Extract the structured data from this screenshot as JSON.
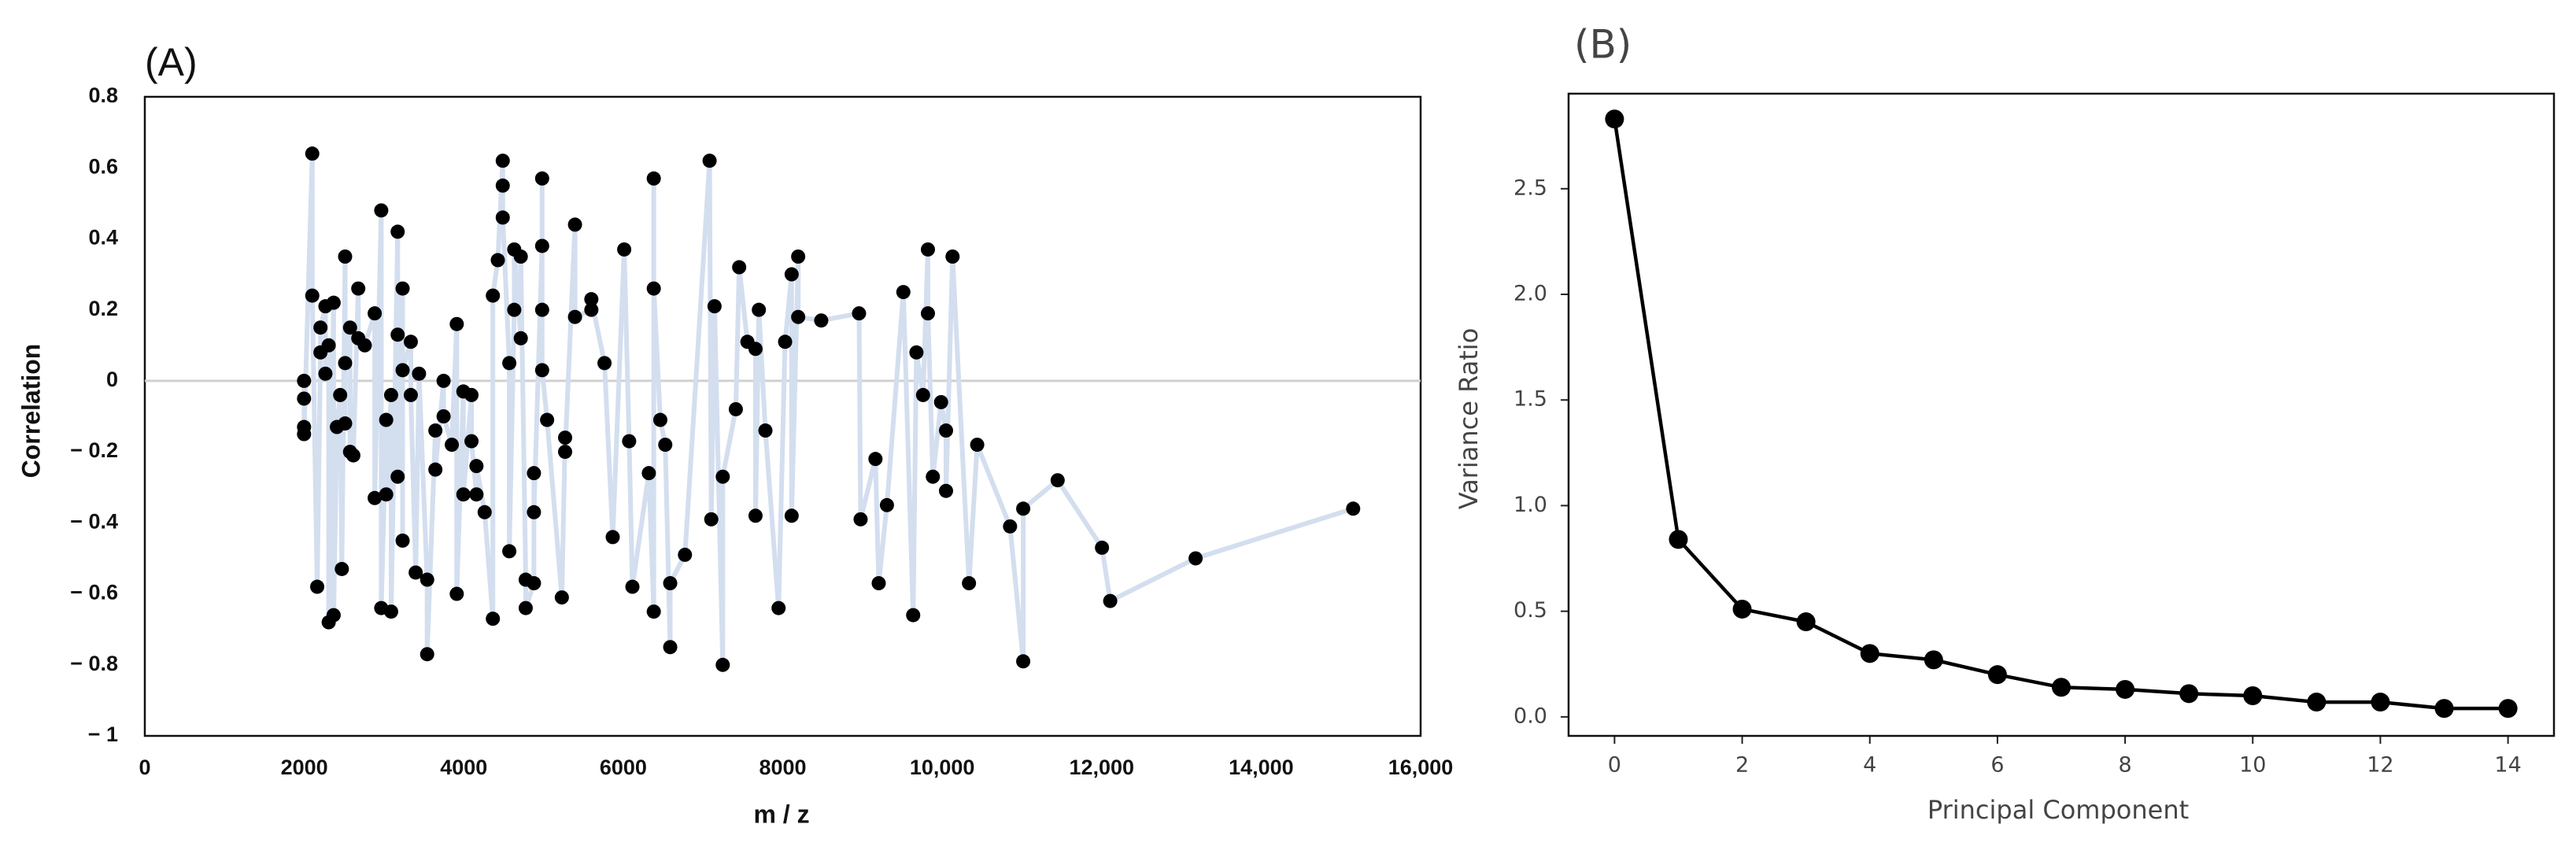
{
  "chart_data": [
    {
      "type": "scatter",
      "title": "(A)",
      "xlabel": "m / z",
      "ylabel": "Correlation",
      "x": [
        1997,
        1997,
        1997,
        1997,
        2100,
        2100,
        2162,
        2203,
        2203,
        2265,
        2265,
        2306,
        2306,
        2368,
        2368,
        2409,
        2450,
        2471,
        2512,
        2512,
        2512,
        2574,
        2574,
        2615,
        2677,
        2677,
        2759,
        2883,
        2883,
        2965,
        2965,
        3027,
        3027,
        3089,
        3089,
        3171,
        3171,
        3171,
        3233,
        3233,
        3233,
        3336,
        3336,
        3397,
        3439,
        3541,
        3541,
        3644,
        3644,
        3747,
        3747,
        3850,
        3912,
        3912,
        3995,
        3995,
        4097,
        4097,
        4159,
        4159,
        4262,
        4365,
        4365,
        4427,
        4489,
        4489,
        4489,
        4571,
        4571,
        4633,
        4633,
        4715,
        4715,
        4777,
        4777,
        4880,
        4880,
        4880,
        4983,
        4983,
        4983,
        4983,
        5045,
        5230,
        5271,
        5271,
        5395,
        5395,
        5600,
        5600,
        5765,
        5868,
        6012,
        6074,
        6115,
        6321,
        6383,
        6383,
        6383,
        6465,
        6527,
        6589,
        6589,
        6774,
        7083,
        7104,
        7145,
        7248,
        7248,
        7412,
        7454,
        7557,
        7659,
        7659,
        7701,
        7783,
        7948,
        8030,
        8112,
        8112,
        8194,
        8194,
        8483,
        8957,
        8977,
        9163,
        9204,
        9307,
        9513,
        9636,
        9677,
        9760,
        9821,
        9821,
        9883,
        9986,
        10048,
        10048,
        10130,
        10336,
        10439,
        10851,
        11016,
        11016,
        11448,
        12004,
        12107,
        13178,
        15154
      ],
      "values": [
        0,
        -0.05,
        -0.13,
        -0.15,
        0.64,
        0.24,
        -0.58,
        0.08,
        0.15,
        0.21,
        0.02,
        0.1,
        -0.68,
        0.22,
        -0.66,
        -0.13,
        -0.04,
        -0.53,
        0.35,
        -0.12,
        0.05,
        0.15,
        -0.2,
        -0.21,
        0.26,
        0.12,
        0.1,
        0.19,
        -0.33,
        0.48,
        -0.64,
        -0.11,
        -0.32,
        -0.04,
        -0.65,
        0.42,
        0.13,
        -0.27,
        0.26,
        -0.45,
        0.03,
        0.11,
        -0.04,
        -0.54,
        0.02,
        -0.56,
        -0.77,
        -0.14,
        -0.25,
        0,
        -0.1,
        -0.18,
        0.16,
        -0.6,
        -0.03,
        -0.32,
        -0.04,
        -0.17,
        -0.32,
        -0.24,
        -0.37,
        -0.67,
        0.24,
        0.34,
        0.62,
        0.55,
        0.46,
        0.05,
        -0.48,
        0.2,
        0.37,
        0.12,
        0.35,
        -0.56,
        -0.64,
        -0.57,
        -0.26,
        -0.37,
        0.38,
        0.57,
        0.2,
        0.03,
        -0.11,
        -0.61,
        -0.16,
        -0.2,
        0.44,
        0.18,
        0.2,
        0.23,
        0.05,
        -0.44,
        0.37,
        -0.17,
        -0.58,
        -0.26,
        -0.65,
        0.57,
        0.26,
        -0.11,
        -0.18,
        -0.75,
        -0.57,
        -0.49,
        0.62,
        -0.39,
        0.21,
        -0.8,
        -0.27,
        -0.08,
        0.32,
        0.11,
        0.09,
        -0.38,
        0.2,
        -0.14,
        -0.64,
        0.11,
        0.3,
        -0.38,
        0.35,
        0.18,
        0.17,
        0.19,
        -0.39,
        -0.22,
        -0.57,
        -0.35,
        0.25,
        -0.66,
        0.08,
        -0.04,
        0.37,
        0.19,
        -0.27,
        -0.06,
        -0.14,
        -0.31,
        0.35,
        -0.57,
        -0.18,
        -0.41,
        -0.79,
        -0.36,
        -0.28,
        -0.47,
        -0.62,
        -0.5,
        -0.36
      ],
      "color": "#000000",
      "line_color": "#d3deef",
      "zero_line": true,
      "xlim": [
        0,
        16000
      ],
      "xticks": [
        0,
        2000,
        4000,
        6000,
        8000,
        {
          "value": 10000,
          "label": "10,000"
        },
        {
          "value": 12000,
          "label": "12,000"
        },
        {
          "value": 14000,
          "label": "14,000"
        },
        {
          "value": 16000,
          "label": "16,000"
        }
      ],
      "ylim": [
        -1,
        0.8
      ],
      "yticks": [
        0.8,
        0.6,
        0.4,
        0.2,
        0,
        {
          "value": -0.2,
          "label": "− 0.2"
        },
        {
          "value": -0.4,
          "label": "− 0.4"
        },
        {
          "value": -0.6,
          "label": "− 0.6"
        },
        {
          "value": -0.8,
          "label": "− 0.8"
        },
        {
          "value": -1,
          "label": "− 1"
        }
      ]
    },
    {
      "type": "line",
      "title": "(B)",
      "xlabel": "Principal Component",
      "ylabel": "Variance Ratio",
      "x": [
        0,
        1,
        2,
        3,
        4,
        5,
        6,
        7,
        8,
        9,
        10,
        11,
        12,
        13,
        14
      ],
      "values": [
        2.83,
        0.84,
        0.51,
        0.45,
        0.3,
        0.27,
        0.2,
        0.14,
        0.13,
        0.11,
        0.1,
        0.07,
        0.07,
        0.04,
        0.04
      ],
      "color": "#000000",
      "xlim": [
        -0.72,
        14.72
      ],
      "xticks": [
        0,
        2,
        4,
        6,
        8,
        10,
        12,
        14
      ],
      "ylim": [
        -0.09,
        2.95
      ],
      "yticks": [
        {
          "value": 0,
          "label": "0.0"
        },
        0.5,
        {
          "value": 1,
          "label": "1.0"
        },
        1.5,
        {
          "value": 2,
          "label": "2.0"
        },
        2.5
      ]
    }
  ]
}
